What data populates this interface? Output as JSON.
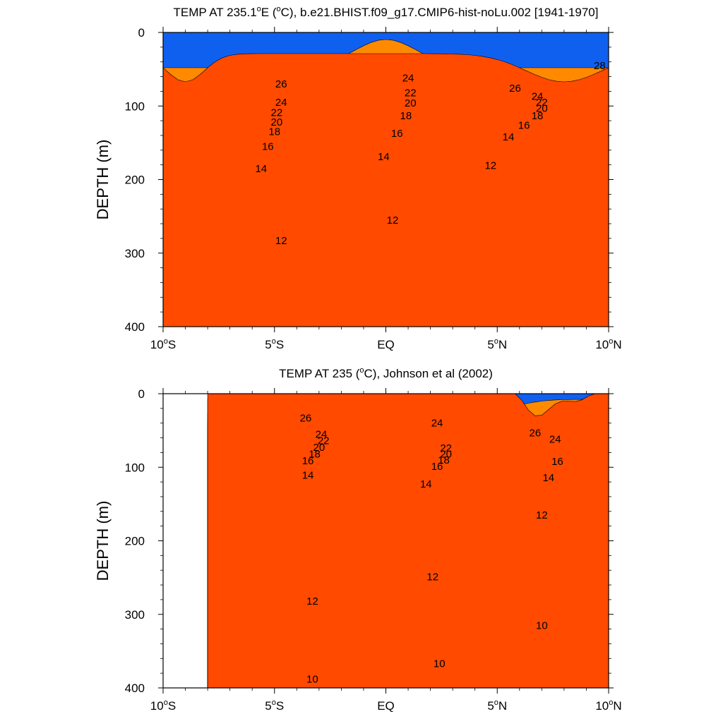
{
  "chart_data": [
    {
      "type": "contour",
      "title": "TEMP AT 235.1°E (°C), b.e21.BHIST.f09_g17.CMIP6-hist-noLu.002 [1941-1970]",
      "title_parts": {
        "pre": "TEMP AT 235.1",
        "deg": "o",
        "post": "E (",
        "deg2": "o",
        "post2": "C), b.e21.BHIST.f09_g17.CMIP6-hist-noLu.002 [1941-1970]"
      },
      "ylabel": "DEPTH (m)",
      "xlim": [
        -10,
        10
      ],
      "ylim": [
        400,
        0
      ],
      "y_ticks": [
        "0",
        "100",
        "200",
        "300",
        "400"
      ],
      "x_ticks": [
        {
          "pre": "10",
          "sup": "o",
          "post": "S"
        },
        {
          "pre": "5",
          "sup": "o",
          "post": "S"
        },
        {
          "pre": "EQ",
          "sup": "",
          "post": ""
        },
        {
          "pre": "5",
          "sup": "o",
          "post": "N"
        },
        {
          "pre": "10",
          "sup": "o",
          "post": "N"
        }
      ],
      "data_xlim": [
        -10,
        10
      ],
      "contour_labels": [
        {
          "text": "28",
          "x": 9.6,
          "y": 45
        },
        {
          "text": "26",
          "x": -4.7,
          "y": 70
        },
        {
          "text": "26",
          "x": 5.8,
          "y": 76
        },
        {
          "text": "24",
          "x": -4.7,
          "y": 95
        },
        {
          "text": "24",
          "x": 1.0,
          "y": 62
        },
        {
          "text": "24",
          "x": 6.8,
          "y": 87
        },
        {
          "text": "22",
          "x": -4.9,
          "y": 109
        },
        {
          "text": "22",
          "x": 1.1,
          "y": 82
        },
        {
          "text": "22",
          "x": 7.0,
          "y": 95
        },
        {
          "text": "20",
          "x": -4.9,
          "y": 122
        },
        {
          "text": "20",
          "x": 1.1,
          "y": 96
        },
        {
          "text": "20",
          "x": 7.0,
          "y": 103
        },
        {
          "text": "18",
          "x": -5.0,
          "y": 135
        },
        {
          "text": "18",
          "x": 0.9,
          "y": 113
        },
        {
          "text": "18",
          "x": 6.8,
          "y": 113
        },
        {
          "text": "16",
          "x": -5.3,
          "y": 155
        },
        {
          "text": "16",
          "x": 0.5,
          "y": 137
        },
        {
          "text": "16",
          "x": 6.2,
          "y": 126
        },
        {
          "text": "14",
          "x": -5.6,
          "y": 185
        },
        {
          "text": "14",
          "x": -0.1,
          "y": 169
        },
        {
          "text": "14",
          "x": 5.5,
          "y": 142
        },
        {
          "text": "12",
          "x": -4.7,
          "y": 283
        },
        {
          "text": "12",
          "x": 0.3,
          "y": 255
        },
        {
          "text": "12",
          "x": 4.7,
          "y": 181
        }
      ]
    },
    {
      "type": "contour",
      "title": "TEMP AT 235 (°C), Johnson et al (2002)",
      "title_parts": {
        "pre": "TEMP AT 235 (",
        "deg": "o",
        "post": "C), Johnson et al (2002)",
        "deg2": "",
        "post2": ""
      },
      "ylabel": "DEPTH (m)",
      "xlim": [
        -10,
        10
      ],
      "ylim": [
        400,
        0
      ],
      "y_ticks": [
        "0",
        "100",
        "200",
        "300",
        "400"
      ],
      "x_ticks": [
        {
          "pre": "10",
          "sup": "o",
          "post": "S"
        },
        {
          "pre": "5",
          "sup": "o",
          "post": "S"
        },
        {
          "pre": "EQ",
          "sup": "",
          "post": ""
        },
        {
          "pre": "5",
          "sup": "o",
          "post": "N"
        },
        {
          "pre": "10",
          "sup": "o",
          "post": "N"
        }
      ],
      "data_xlim": [
        -8,
        10
      ],
      "contour_labels": [
        {
          "text": "26",
          "x": -3.6,
          "y": 33
        },
        {
          "text": "26",
          "x": 6.7,
          "y": 53
        },
        {
          "text": "24",
          "x": -2.9,
          "y": 55
        },
        {
          "text": "24",
          "x": 2.3,
          "y": 40
        },
        {
          "text": "24",
          "x": 7.6,
          "y": 62
        },
        {
          "text": "22",
          "x": -2.8,
          "y": 64
        },
        {
          "text": "22",
          "x": 2.7,
          "y": 74
        },
        {
          "text": "20",
          "x": -3.0,
          "y": 73
        },
        {
          "text": "20",
          "x": 2.7,
          "y": 82
        },
        {
          "text": "18",
          "x": -3.2,
          "y": 82
        },
        {
          "text": "18",
          "x": 2.6,
          "y": 90
        },
        {
          "text": "16",
          "x": -3.5,
          "y": 91
        },
        {
          "text": "16",
          "x": 2.3,
          "y": 99
        },
        {
          "text": "16",
          "x": 7.7,
          "y": 92
        },
        {
          "text": "14",
          "x": -3.5,
          "y": 111
        },
        {
          "text": "14",
          "x": 1.8,
          "y": 123
        },
        {
          "text": "14",
          "x": 7.3,
          "y": 114
        },
        {
          "text": "12",
          "x": 7.0,
          "y": 165
        },
        {
          "text": "12",
          "x": 2.1,
          "y": 249
        },
        {
          "text": "12",
          "x": -3.3,
          "y": 282
        },
        {
          "text": "10",
          "x": 7.0,
          "y": 315
        },
        {
          "text": "10",
          "x": 2.4,
          "y": 367
        },
        {
          "text": "10",
          "x": -3.3,
          "y": 388
        }
      ]
    }
  ]
}
